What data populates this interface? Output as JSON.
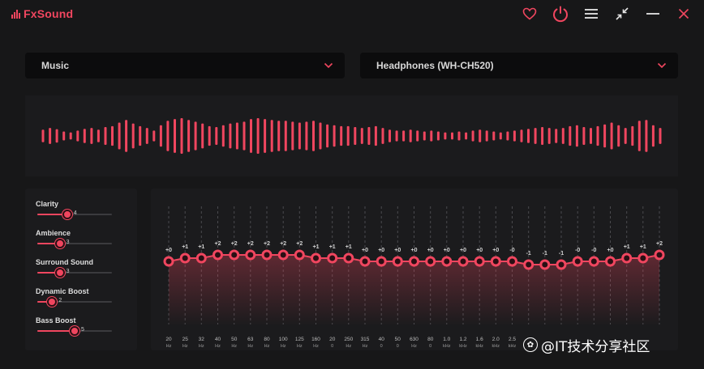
{
  "app": {
    "name": "FxSound"
  },
  "colors": {
    "accent": "#f0465f",
    "background": "#171718",
    "panel": "#1b1b1d",
    "dropdown": "#0c0c0d"
  },
  "toolbar": {
    "icons": [
      "heart-icon",
      "power-icon",
      "menu-icon",
      "shrink-icon",
      "minimize-icon",
      "close-icon"
    ]
  },
  "preset": {
    "selected": "Music"
  },
  "output": {
    "selected": "Headphones (WH-CH520)"
  },
  "visualizer": {
    "levels": [
      0.35,
      0.45,
      0.38,
      0.25,
      0.2,
      0.3,
      0.4,
      0.45,
      0.35,
      0.5,
      0.55,
      0.75,
      0.9,
      0.7,
      0.55,
      0.45,
      0.3,
      0.6,
      0.85,
      0.95,
      1.0,
      0.9,
      0.8,
      0.7,
      0.55,
      0.5,
      0.6,
      0.7,
      0.75,
      0.8,
      0.95,
      1.0,
      0.95,
      0.9,
      0.85,
      0.85,
      0.8,
      0.75,
      0.8,
      0.85,
      0.75,
      0.65,
      0.6,
      0.55,
      0.55,
      0.5,
      0.45,
      0.5,
      0.55,
      0.45,
      0.35,
      0.3,
      0.3,
      0.35,
      0.3,
      0.25,
      0.3,
      0.25,
      0.2,
      0.2,
      0.25,
      0.2,
      0.3,
      0.35,
      0.3,
      0.25,
      0.2,
      0.25,
      0.3,
      0.35,
      0.4,
      0.45,
      0.5,
      0.45,
      0.4,
      0.45,
      0.55,
      0.6,
      0.5,
      0.45,
      0.55,
      0.65,
      0.75,
      0.6,
      0.45,
      0.55,
      0.85,
      0.9,
      0.6,
      0.45
    ]
  },
  "effects": [
    {
      "label": "Clarity",
      "value": "4",
      "level": 0.4
    },
    {
      "label": "Ambience",
      "value": "3",
      "level": 0.3
    },
    {
      "label": "Surround Sound",
      "value": "3",
      "level": 0.3
    },
    {
      "label": "Dynamic Boost",
      "value": "2",
      "level": 0.2
    },
    {
      "label": "Bass Boost",
      "value": "5",
      "level": 0.5
    }
  ],
  "eq": {
    "bands": [
      {
        "freq": "20",
        "unit": "Hz",
        "gain_label": "+0",
        "gain": 0
      },
      {
        "freq": "25",
        "unit": "Hz",
        "gain_label": "+1",
        "gain": 1
      },
      {
        "freq": "32",
        "unit": "Hz",
        "gain_label": "+1",
        "gain": 1
      },
      {
        "freq": "40",
        "unit": "Hz",
        "gain_label": "+2",
        "gain": 2
      },
      {
        "freq": "50",
        "unit": "Hz",
        "gain_label": "+2",
        "gain": 2
      },
      {
        "freq": "63",
        "unit": "Hz",
        "gain_label": "+2",
        "gain": 2
      },
      {
        "freq": "80",
        "unit": "Hz",
        "gain_label": "+2",
        "gain": 2
      },
      {
        "freq": "100",
        "unit": "Hz",
        "gain_label": "+2",
        "gain": 2
      },
      {
        "freq": "125",
        "unit": "Hz",
        "gain_label": "+2",
        "gain": 2
      },
      {
        "freq": "160",
        "unit": "Hz",
        "gain_label": "+1",
        "gain": 1
      },
      {
        "freq": "20",
        "unit": "0",
        "gain_label": "+1",
        "gain": 1
      },
      {
        "freq": "250",
        "unit": "Hz",
        "gain_label": "+1",
        "gain": 1
      },
      {
        "freq": "315",
        "unit": "Hz",
        "gain_label": "+0",
        "gain": 0
      },
      {
        "freq": "40",
        "unit": "0",
        "gain_label": "+0",
        "gain": 0
      },
      {
        "freq": "50",
        "unit": "0",
        "gain_label": "+0",
        "gain": 0
      },
      {
        "freq": "630",
        "unit": "Hz",
        "gain_label": "+0",
        "gain": 0
      },
      {
        "freq": "80",
        "unit": "0",
        "gain_label": "+0",
        "gain": 0
      },
      {
        "freq": "1.0",
        "unit": "kHz",
        "gain_label": "+0",
        "gain": 0
      },
      {
        "freq": "1.2",
        "unit": "kHz",
        "gain_label": "+0",
        "gain": 0
      },
      {
        "freq": "1.6",
        "unit": "kHz",
        "gain_label": "+0",
        "gain": 0
      },
      {
        "freq": "2.0",
        "unit": "kHz",
        "gain_label": "+0",
        "gain": 0
      },
      {
        "freq": "2.5",
        "unit": "kHz",
        "gain_label": "-0",
        "gain": 0
      },
      {
        "freq": "",
        "unit": "",
        "gain_label": "-1",
        "gain": -1
      },
      {
        "freq": "",
        "unit": "",
        "gain_label": "-1",
        "gain": -1
      },
      {
        "freq": "",
        "unit": "",
        "gain_label": "-1",
        "gain": -1
      },
      {
        "freq": "",
        "unit": "",
        "gain_label": "-0",
        "gain": 0
      },
      {
        "freq": "",
        "unit": "",
        "gain_label": "-0",
        "gain": 0
      },
      {
        "freq": "",
        "unit": "",
        "gain_label": "+0",
        "gain": 0
      },
      {
        "freq": "",
        "unit": "",
        "gain_label": "+1",
        "gain": 1
      },
      {
        "freq": "",
        "unit": "",
        "gain_label": "+1",
        "gain": 1
      },
      {
        "freq": "",
        "unit": "",
        "gain_label": "+2",
        "gain": 2
      }
    ]
  },
  "watermark": {
    "text": "@IT技术分享社区"
  }
}
